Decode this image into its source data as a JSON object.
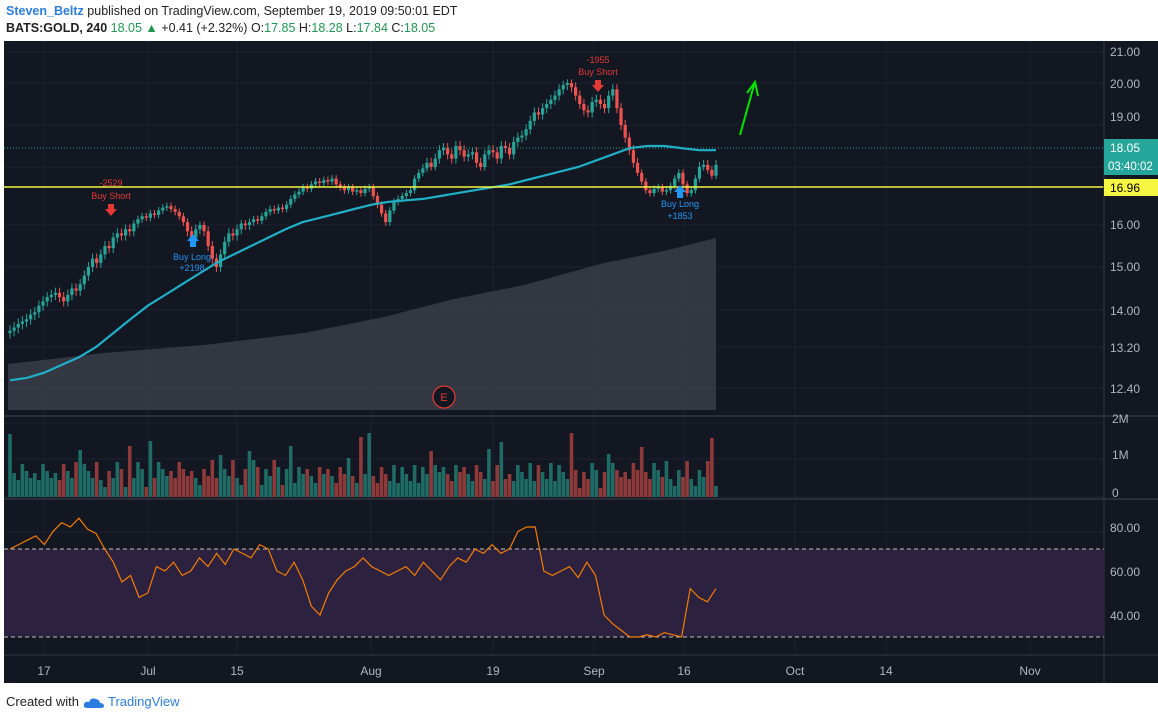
{
  "header": {
    "author": "Steven_Beltz",
    "published": "published on TradingView.com, September 19, 2019 09:50:01 EDT",
    "symbol": "BATS:GOLD, 240",
    "last": "18.05",
    "change_arrow": "▲",
    "change": "+0.41 (+2.32%)",
    "o_label": "O:",
    "o": "17.85",
    "h_label": "H:",
    "h": "18.28",
    "l_label": "L:",
    "l": "17.84",
    "c_label": "C:",
    "c": "18.05"
  },
  "footer": {
    "created": "Created with",
    "brand": "TradingView",
    "logo_icon": "tradingview-cloud-icon"
  },
  "colors": {
    "background": "#131722",
    "up": "#26a69a",
    "down": "#ef5350",
    "ma": "#1fb0c8",
    "support": "#f5f542",
    "rsi": "#f57c00",
    "rsi_band": "#2d2140",
    "short_signal": "#e53935",
    "long_signal": "#2196f3",
    "forecast_arrow": "#00e600"
  },
  "chart_data": {
    "type": "candlestick",
    "y_ticks": [
      "21.00",
      "20.00",
      "19.00",
      "18.05",
      "03:40:02",
      "16.96",
      "16.00",
      "15.00",
      "14.00",
      "13.20",
      "12.40"
    ],
    "last_price": 18.05,
    "countdown": "03:40:02",
    "support_level": 16.96,
    "x_ticks": [
      "17",
      "Jul",
      "15",
      "Aug",
      "19",
      "Sep",
      "16",
      "Oct",
      "14",
      "Nov"
    ],
    "signals": [
      {
        "type": "short",
        "label": "Buy Short",
        "value": "-2529"
      },
      {
        "type": "long",
        "label": "Buy Long",
        "value": "+2198"
      },
      {
        "type": "short",
        "label": "Buy Short",
        "value": "-1955"
      },
      {
        "type": "long",
        "label": "Buy Long",
        "value": "+1853"
      }
    ],
    "earnings_marker": "E",
    "candles_close": [
      13.55,
      13.62,
      13.7,
      13.75,
      13.8,
      13.9,
      13.95,
      14.1,
      14.2,
      14.3,
      14.35,
      14.4,
      14.3,
      14.2,
      14.35,
      14.5,
      14.45,
      14.6,
      14.8,
      15.0,
      15.2,
      15.1,
      15.3,
      15.5,
      15.45,
      15.7,
      15.8,
      15.75,
      15.9,
      15.85,
      16.05,
      16.2,
      16.3,
      16.25,
      16.4,
      16.35,
      16.5,
      16.6,
      16.65,
      16.55,
      16.45,
      16.3,
      16.1,
      15.85,
      15.7,
      15.9,
      16.0,
      15.85,
      15.5,
      15.2,
      15.0,
      15.3,
      15.6,
      15.8,
      15.75,
      15.9,
      16.05,
      16.0,
      16.1,
      16.2,
      16.15,
      16.3,
      16.45,
      16.55,
      16.5,
      16.6,
      16.55,
      16.7,
      16.9,
      17.05,
      17.15,
      17.3,
      17.25,
      17.4,
      17.5,
      17.45,
      17.55,
      17.5,
      17.6,
      17.4,
      17.3,
      17.2,
      17.3,
      17.15,
      17.2,
      17.1,
      17.25,
      17.3,
      17.0,
      16.7,
      16.4,
      16.1,
      16.5,
      16.8,
      16.9,
      17.0,
      17.1,
      17.2,
      17.6,
      17.8,
      17.95,
      18.1,
      18.0,
      18.2,
      18.4,
      18.45,
      18.3,
      18.2,
      18.5,
      18.4,
      18.25,
      18.3,
      18.35,
      18.1,
      18.0,
      18.3,
      18.4,
      18.35,
      18.2,
      18.5,
      18.45,
      18.3,
      18.6,
      18.7,
      18.75,
      18.9,
      19.1,
      19.3,
      19.25,
      19.4,
      19.5,
      19.6,
      19.7,
      19.85,
      19.95,
      20.0,
      19.9,
      19.7,
      19.5,
      19.35,
      19.3,
      19.55,
      19.6,
      19.5,
      19.4,
      19.7,
      19.85,
      19.4,
      19.0,
      18.7,
      18.4,
      18.1,
      17.8,
      17.5,
      17.2,
      17.1,
      17.25,
      17.3,
      17.15,
      17.2,
      17.35,
      17.6,
      17.8,
      17.4,
      17.1,
      17.2,
      17.6,
      18.0,
      18.05,
      17.9,
      17.7,
      18.05
    ],
    "ma_series": [
      12.55,
      12.6,
      12.7,
      12.85,
      13.0,
      13.2,
      13.5,
      13.8,
      14.1,
      14.35,
      14.6,
      14.85,
      15.1,
      15.3,
      15.5,
      15.7,
      15.9,
      16.1,
      16.25,
      16.4,
      16.55,
      16.7,
      16.8,
      16.85,
      16.9,
      17.0,
      17.1,
      17.2,
      17.3,
      17.4,
      17.55,
      17.7,
      17.85,
      18.0,
      18.15,
      18.3,
      18.45,
      18.5,
      18.5,
      18.45,
      18.4,
      18.4
    ],
    "volume_axis": [
      "2M",
      "1M",
      "0"
    ],
    "rsi_axis": [
      "80.00",
      "60.00",
      "40.00"
    ],
    "rsi_levels": [
      70,
      30
    ],
    "rsi_series": [
      70,
      72,
      74,
      76,
      72,
      78,
      82,
      80,
      84,
      79,
      77,
      70,
      64,
      55,
      58,
      48,
      50,
      62,
      60,
      64,
      58,
      60,
      66,
      62,
      68,
      63,
      70,
      68,
      66,
      72,
      70,
      60,
      58,
      64,
      56,
      44,
      40,
      50,
      56,
      60,
      62,
      66,
      62,
      60,
      58,
      60,
      62,
      58,
      64,
      60,
      56,
      62,
      66,
      64,
      70,
      68,
      72,
      68,
      70,
      78,
      80,
      80,
      60,
      58,
      60,
      62,
      57,
      64,
      58,
      40,
      36,
      33,
      30,
      30,
      31,
      30,
      32,
      31,
      30,
      52,
      48,
      46,
      52
    ]
  }
}
